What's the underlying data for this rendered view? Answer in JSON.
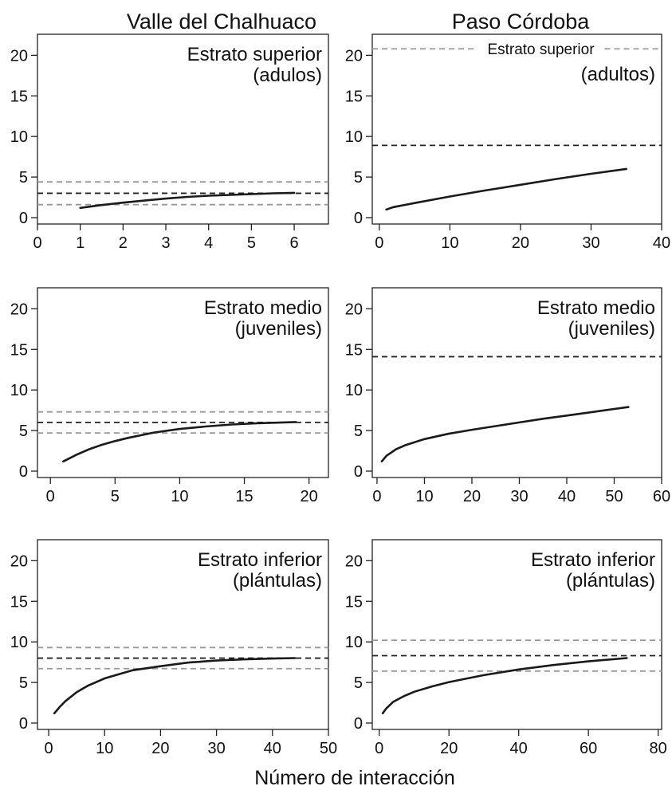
{
  "column_titles": [
    "Valle del Chalhuaco",
    "Paso Córdoba"
  ],
  "xlabel": "Número de interacción",
  "colors": {
    "curve": "#1a1a1a",
    "mean_line": "#222222",
    "bound_line": "#999999"
  },
  "chart_data": [
    {
      "type": "line",
      "site": "Valle del Chalhuaco",
      "label_lines": [
        "Estrato superior",
        "(adulos)"
      ],
      "xlim": [
        0,
        6.8
      ],
      "ylim": [
        0,
        22
      ],
      "xticks": [
        0,
        1,
        2,
        3,
        4,
        5,
        6
      ],
      "xtick_labels": [
        "0",
        "1",
        "2",
        "3",
        "4",
        "5",
        "6"
      ],
      "yticks": [
        0,
        5,
        10,
        15,
        20
      ],
      "ytick_labels": [
        "0",
        "5",
        "10",
        "15",
        "20"
      ],
      "curve": {
        "x": [
          1,
          1.5,
          2,
          2.5,
          3,
          3.5,
          4,
          4.5,
          5,
          5.5,
          6
        ],
        "y": [
          1.2,
          1.55,
          1.85,
          2.1,
          2.35,
          2.55,
          2.7,
          2.8,
          2.9,
          3.0,
          3.05
        ]
      },
      "ref_lines": [
        {
          "y": 4.4,
          "kind": "bound"
        },
        {
          "y": 3.0,
          "kind": "mean"
        },
        {
          "y": 1.6,
          "kind": "bound"
        }
      ]
    },
    {
      "type": "line",
      "site": "Paso Córdoba",
      "label_lines": [
        "(adultos)"
      ],
      "xlim": [
        -1,
        40
      ],
      "ylim": [
        0,
        22
      ],
      "xticks": [
        0,
        10,
        20,
        30,
        40
      ],
      "xtick_labels": [
        "0",
        "10",
        "20",
        "30",
        "40"
      ],
      "yticks": [
        0,
        5,
        10,
        15,
        20
      ],
      "ytick_labels": [
        "0",
        "5",
        "10",
        "15",
        "20"
      ],
      "curve": {
        "x": [
          1,
          2,
          5,
          10,
          15,
          20,
          25,
          30,
          35
        ],
        "y": [
          1.0,
          1.3,
          1.8,
          2.6,
          3.35,
          4.05,
          4.75,
          5.4,
          6.0
        ]
      },
      "ref_lines": [
        {
          "y": 20.8,
          "kind": "bound",
          "inline_label": "Estrato superior"
        },
        {
          "y": 8.9,
          "kind": "mean"
        }
      ]
    },
    {
      "type": "line",
      "site": "Valle del Chalhuaco",
      "label_lines": [
        "Estrato medio",
        "(juveniles)"
      ],
      "xlim": [
        -1,
        21.5
      ],
      "ylim": [
        0,
        22
      ],
      "xticks": [
        0,
        5,
        10,
        15,
        20
      ],
      "xtick_labels": [
        "0",
        "5",
        "10",
        "15",
        "20"
      ],
      "yticks": [
        0,
        5,
        10,
        15,
        20
      ],
      "ytick_labels": [
        "0",
        "5",
        "10",
        "15",
        "20"
      ],
      "curve": {
        "x": [
          1,
          2,
          3,
          4,
          5,
          6,
          8,
          10,
          12,
          14,
          16,
          19
        ],
        "y": [
          1.2,
          2.0,
          2.7,
          3.25,
          3.7,
          4.1,
          4.75,
          5.2,
          5.5,
          5.75,
          5.9,
          6.05
        ]
      },
      "ref_lines": [
        {
          "y": 7.3,
          "kind": "bound"
        },
        {
          "y": 6.0,
          "kind": "mean"
        },
        {
          "y": 4.7,
          "kind": "bound"
        }
      ]
    },
    {
      "type": "line",
      "site": "Paso Córdoba",
      "label_lines": [
        "Estrato medio",
        "(juveniles)"
      ],
      "xlim": [
        -1,
        60
      ],
      "ylim": [
        0,
        22
      ],
      "xticks": [
        0,
        10,
        20,
        30,
        40,
        50,
        60
      ],
      "xtick_labels": [
        "0",
        "10",
        "20",
        "30",
        "40",
        "50",
        "60"
      ],
      "yticks": [
        0,
        5,
        10,
        15,
        20
      ],
      "ytick_labels": [
        "0",
        "5",
        "10",
        "15",
        "20"
      ],
      "curve": {
        "x": [
          1,
          2,
          4,
          6,
          10,
          15,
          20,
          25,
          30,
          35,
          40,
          45,
          53
        ],
        "y": [
          1.2,
          1.9,
          2.7,
          3.2,
          3.95,
          4.6,
          5.1,
          5.55,
          6.0,
          6.45,
          6.85,
          7.25,
          7.9
        ]
      },
      "ref_lines": [
        {
          "y": 14.1,
          "kind": "mean"
        }
      ]
    },
    {
      "type": "line",
      "site": "Valle del Chalhuaco",
      "label_lines": [
        "Estrato inferior",
        "(plántulas)"
      ],
      "xlim": [
        -2,
        50
      ],
      "ylim": [
        0,
        22
      ],
      "xticks": [
        0,
        10,
        20,
        30,
        40,
        50
      ],
      "xtick_labels": [
        "0",
        "10",
        "20",
        "30",
        "40",
        "50"
      ],
      "yticks": [
        0,
        5,
        10,
        15,
        20
      ],
      "ytick_labels": [
        "0",
        "5",
        "10",
        "15",
        "20"
      ],
      "curve": {
        "x": [
          1,
          2,
          3,
          5,
          7,
          10,
          15,
          20,
          25,
          30,
          35,
          40,
          44
        ],
        "y": [
          1.2,
          2.0,
          2.7,
          3.8,
          4.6,
          5.5,
          6.5,
          7.0,
          7.45,
          7.7,
          7.85,
          7.95,
          8.0
        ]
      },
      "ref_lines": [
        {
          "y": 9.3,
          "kind": "bound"
        },
        {
          "y": 8.0,
          "kind": "mean"
        },
        {
          "y": 6.7,
          "kind": "bound"
        }
      ]
    },
    {
      "type": "line",
      "site": "Paso Córdoba",
      "label_lines": [
        "Estrato inferior",
        "(plántulas)"
      ],
      "xlim": [
        -2,
        81
      ],
      "ylim": [
        0,
        22
      ],
      "xticks": [
        0,
        20,
        40,
        60,
        80
      ],
      "xtick_labels": [
        "0",
        "20",
        "40",
        "60",
        "80"
      ],
      "yticks": [
        0,
        5,
        10,
        15,
        20
      ],
      "ytick_labels": [
        "0",
        "5",
        "10",
        "15",
        "20"
      ],
      "curve": {
        "x": [
          1,
          2,
          4,
          7,
          10,
          15,
          20,
          30,
          40,
          50,
          60,
          71
        ],
        "y": [
          1.2,
          1.8,
          2.6,
          3.3,
          3.85,
          4.5,
          5.05,
          5.9,
          6.6,
          7.15,
          7.6,
          8.0
        ]
      },
      "ref_lines": [
        {
          "y": 10.2,
          "kind": "bound"
        },
        {
          "y": 8.3,
          "kind": "mean"
        },
        {
          "y": 6.4,
          "kind": "bound"
        }
      ]
    }
  ]
}
